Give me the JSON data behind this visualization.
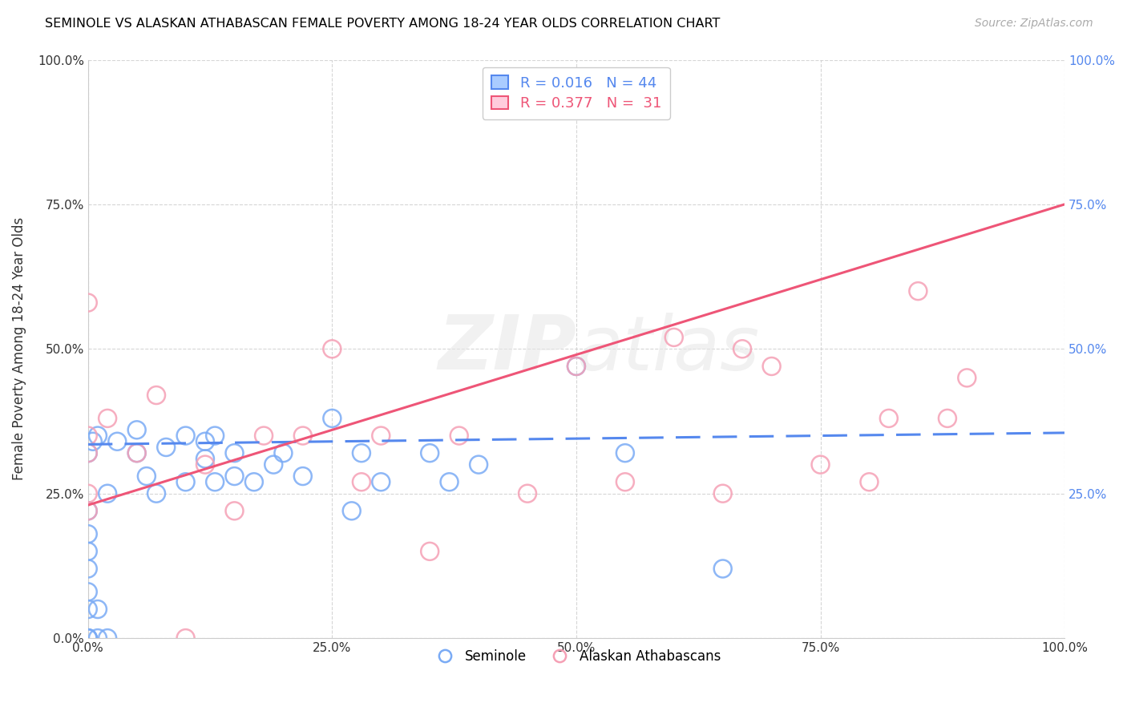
{
  "title": "SEMINOLE VS ALASKAN ATHABASCAN FEMALE POVERTY AMONG 18-24 YEAR OLDS CORRELATION CHART",
  "source": "Source: ZipAtlas.com",
  "ylabel": "Female Poverty Among 18-24 Year Olds",
  "xlim": [
    0,
    1
  ],
  "ylim": [
    0,
    1
  ],
  "xticks": [
    0,
    0.25,
    0.5,
    0.75,
    1.0
  ],
  "yticks": [
    0,
    0.25,
    0.5,
    0.75,
    1.0
  ],
  "xtick_labels": [
    "0.0%",
    "25.0%",
    "50.0%",
    "75.0%",
    "100.0%"
  ],
  "ytick_labels": [
    "0.0%",
    "25.0%",
    "50.0%",
    "75.0%",
    "100.0%"
  ],
  "right_ytick_labels": [
    "25.0%",
    "50.0%",
    "75.0%",
    "100.0%"
  ],
  "seminole_color": "#7aabf5",
  "athabascan_color": "#f5a0b5",
  "seminole_line_color": "#5588ee",
  "athabascan_line_color": "#ee5577",
  "seminole_R": 0.016,
  "seminole_N": 44,
  "athabascan_R": 0.377,
  "athabascan_N": 31,
  "seminole_trend_y0": 0.335,
  "seminole_trend_y1": 0.355,
  "athabascan_trend_y0": 0.23,
  "athabascan_trend_y1": 0.75,
  "seminole_x": [
    0.0,
    0.0,
    0.0,
    0.0,
    0.0,
    0.0,
    0.0,
    0.0,
    0.0,
    0.0,
    0.005,
    0.01,
    0.01,
    0.01,
    0.02,
    0.02,
    0.03,
    0.05,
    0.05,
    0.06,
    0.07,
    0.08,
    0.1,
    0.1,
    0.12,
    0.12,
    0.13,
    0.13,
    0.15,
    0.15,
    0.17,
    0.19,
    0.2,
    0.22,
    0.25,
    0.27,
    0.28,
    0.3,
    0.35,
    0.37,
    0.4,
    0.5,
    0.55,
    0.65
  ],
  "seminole_y": [
    0.0,
    0.0,
    0.0,
    0.05,
    0.08,
    0.12,
    0.15,
    0.18,
    0.22,
    0.32,
    0.34,
    0.0,
    0.05,
    0.35,
    0.0,
    0.25,
    0.34,
    0.32,
    0.36,
    0.28,
    0.25,
    0.33,
    0.27,
    0.35,
    0.31,
    0.34,
    0.35,
    0.27,
    0.32,
    0.28,
    0.27,
    0.3,
    0.32,
    0.28,
    0.38,
    0.22,
    0.32,
    0.27,
    0.32,
    0.27,
    0.3,
    0.47,
    0.32,
    0.12
  ],
  "athabascan_x": [
    0.0,
    0.0,
    0.0,
    0.0,
    0.0,
    0.02,
    0.05,
    0.07,
    0.1,
    0.12,
    0.15,
    0.18,
    0.22,
    0.25,
    0.28,
    0.3,
    0.35,
    0.38,
    0.45,
    0.5,
    0.55,
    0.6,
    0.65,
    0.67,
    0.7,
    0.75,
    0.8,
    0.82,
    0.85,
    0.88,
    0.9
  ],
  "athabascan_y": [
    0.25,
    0.32,
    0.35,
    0.58,
    0.22,
    0.38,
    0.32,
    0.42,
    0.0,
    0.3,
    0.22,
    0.35,
    0.35,
    0.5,
    0.27,
    0.35,
    0.15,
    0.35,
    0.25,
    0.47,
    0.27,
    0.52,
    0.25,
    0.5,
    0.47,
    0.3,
    0.27,
    0.38,
    0.6,
    0.38,
    0.45
  ]
}
